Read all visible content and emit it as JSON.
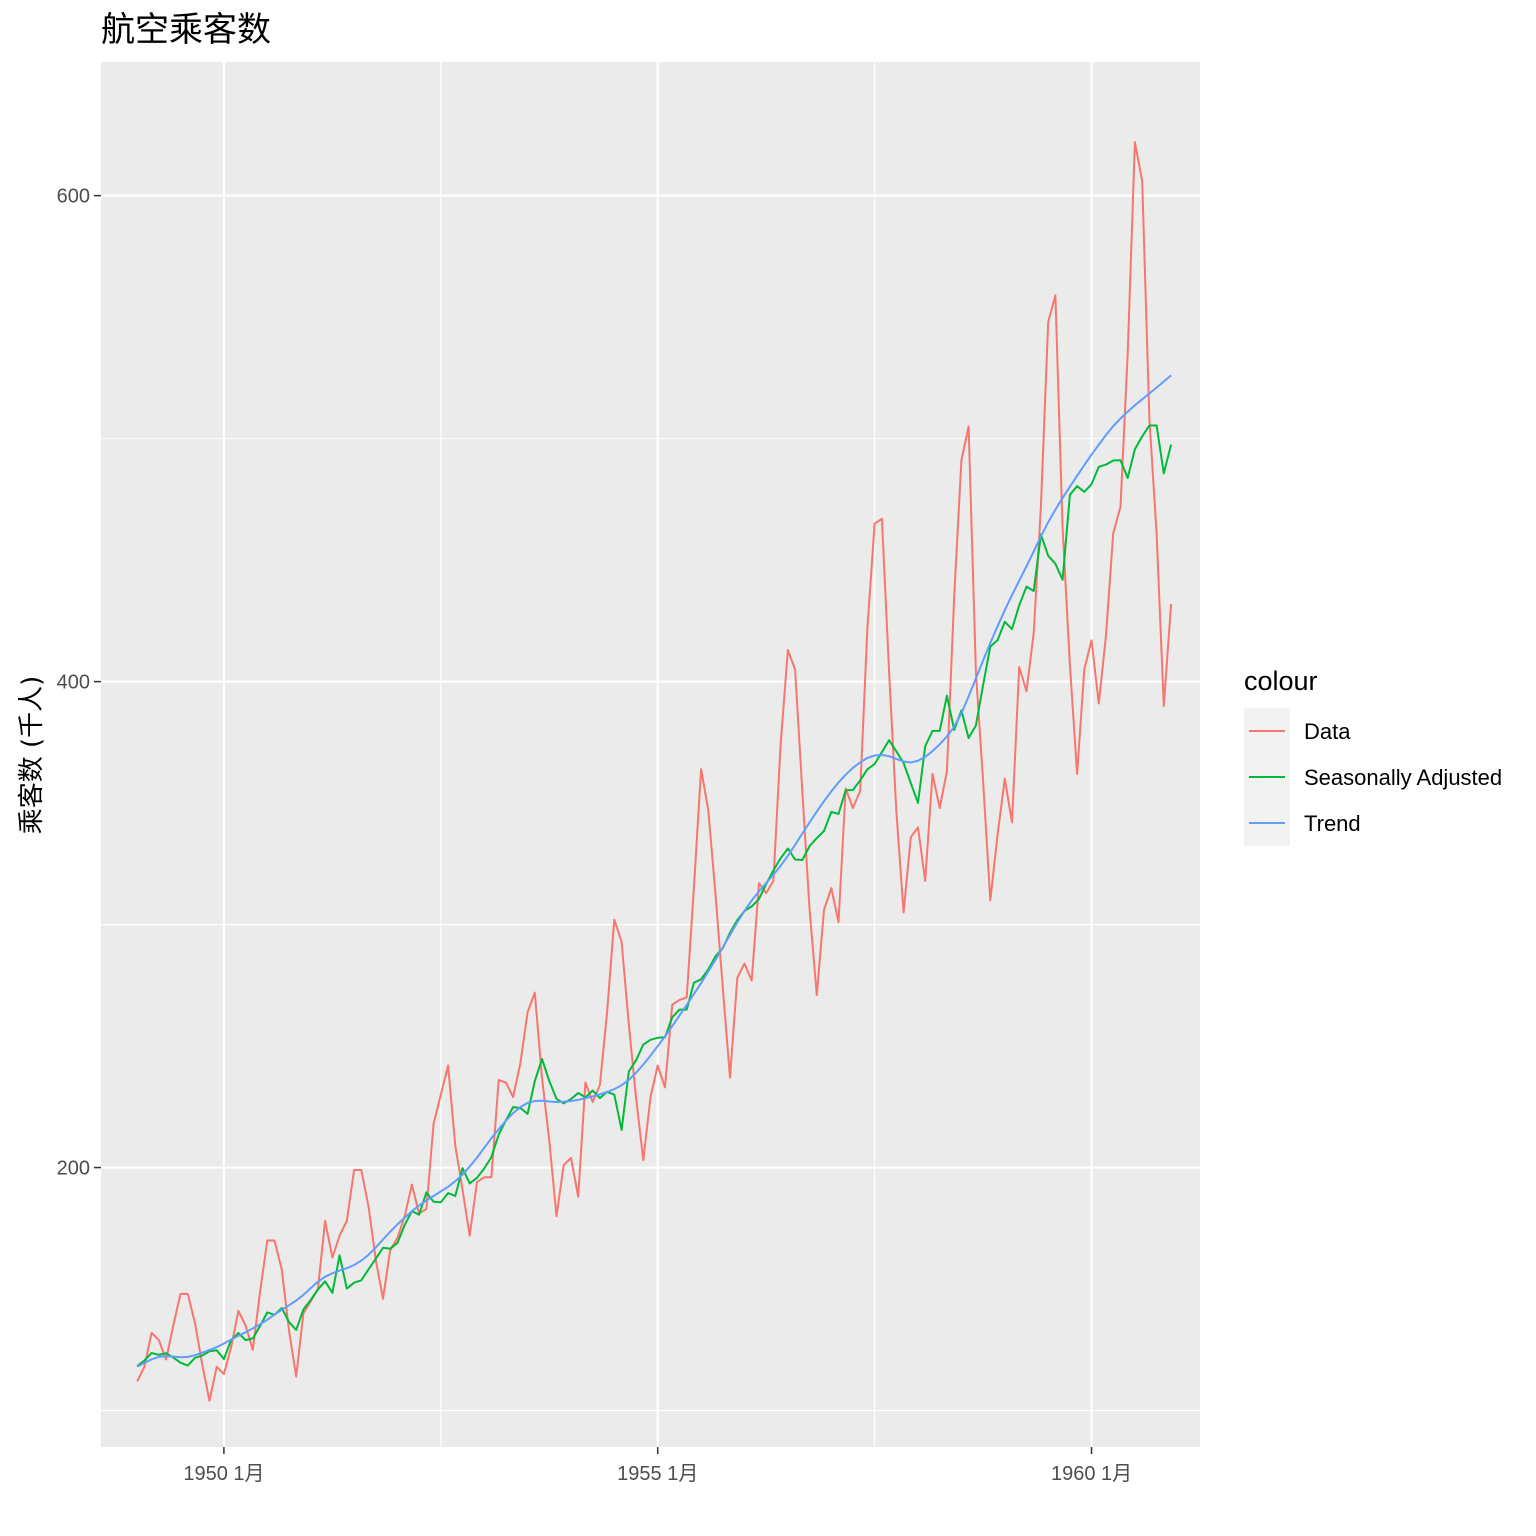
{
  "chart_data": {
    "type": "line",
    "title": "航空乘客数",
    "xlabel": "",
    "ylabel": "乘客数 (千人)",
    "x_start": "1949-01",
    "frequency": "monthly",
    "xlim": [
      "1948-08",
      "1961-04"
    ],
    "ylim": [
      85,
      655
    ],
    "y_ticks": [
      200,
      400,
      600
    ],
    "y_tick_labels": [
      "200",
      "400",
      "600"
    ],
    "x_ticks": [
      "1950-01",
      "1955-01",
      "1960-01"
    ],
    "x_tick_labels": [
      "1950 1月",
      "1955 1月",
      "1960 1月"
    ],
    "grid": true,
    "legend_position": "right",
    "legend_title": "colour",
    "panel_background": "#EBEBEB",
    "series": [
      {
        "name": "Data",
        "color": "#F8766D",
        "values": [
          112,
          118,
          132,
          129,
          121,
          135,
          148,
          148,
          136,
          119,
          104,
          118,
          115,
          126,
          141,
          135,
          125,
          149,
          170,
          170,
          158,
          133,
          114,
          140,
          145,
          150,
          178,
          163,
          172,
          178,
          199,
          199,
          184,
          162,
          146,
          166,
          171,
          180,
          193,
          181,
          183,
          218,
          230,
          242,
          209,
          191,
          172,
          194,
          196,
          196,
          236,
          235,
          229,
          243,
          264,
          272,
          237,
          211,
          180,
          201,
          204,
          188,
          235,
          227,
          234,
          264,
          302,
          293,
          259,
          229,
          203,
          229,
          242,
          233,
          267,
          269,
          270,
          315,
          364,
          347,
          312,
          274,
          237,
          278,
          284,
          277,
          317,
          313,
          318,
          374,
          413,
          405,
          355,
          306,
          271,
          306,
          315,
          301,
          356,
          348,
          355,
          422,
          465,
          467,
          404,
          347,
          305,
          336,
          340,
          318,
          362,
          348,
          363,
          435,
          491,
          505,
          404,
          359,
          310,
          337,
          360,
          342,
          406,
          396,
          420,
          472,
          548,
          559,
          463,
          407,
          362,
          405,
          417,
          391,
          419,
          461,
          472,
          535,
          622,
          606,
          508,
          461,
          390,
          432
        ]
      },
      {
        "name": "Seasonally Adjusted",
        "color": "#00BA38",
        "values": [
          118.3,
          120.6,
          123.7,
          122.9,
          123.6,
          121.8,
          119.7,
          118.5,
          121.7,
          122.6,
          124.4,
          124.8,
          121.2,
          128.9,
          131.9,
          129.0,
          129.7,
          134.8,
          140.4,
          139.4,
          142.2,
          136.4,
          133.2,
          141.6,
          145.5,
          149.8,
          153.2,
          148.4,
          163.9,
          150.2,
          152.6,
          153.6,
          158.1,
          162.5,
          167.0,
          166.6,
          168.9,
          176.4,
          182.1,
          180.6,
          189.8,
          185.9,
          185.7,
          189.5,
          188.3,
          199.8,
          193.5,
          195.8,
          199.6,
          204.3,
          213.6,
          219.4,
          224.9,
          224.5,
          222.1,
          235.6,
          244.7,
          235.6,
          228.3,
          226.4,
          228.2,
          230.7,
          228.9,
          231.7,
          228.6,
          231.2,
          230.0,
          215.5,
          239.5,
          244.1,
          250.6,
          252.6,
          253.4,
          253.6,
          261.8,
          265.0,
          265.0,
          276.1,
          277.5,
          281.6,
          287.0,
          290.3,
          296.6,
          301.9,
          305.6,
          307.5,
          310.5,
          316.7,
          322.3,
          327.3,
          331.3,
          326.8,
          326.6,
          332.3,
          335.6,
          338.5,
          346.4,
          345.5,
          355.3,
          355.4,
          359.4,
          363.9,
          366.1,
          371.0,
          375.9,
          371.3,
          366.5,
          358.2,
          350.1,
          373.4,
          379.7,
          379.7,
          394.2,
          380.1,
          388.1,
          376.8,
          381.9,
          398.6,
          414.4,
          417.1,
          424.6,
          421.6,
          431.4,
          439.1,
          437.3,
          460.5,
          451.8,
          448.5,
          441.9,
          476.9,
          480.4,
          478.1,
          481.2,
          488.4,
          489.3,
          491.0,
          491.1,
          483.8,
          495.7,
          500.9,
          505.4,
          505.4,
          485.7,
          497.6
        ]
      },
      {
        "name": "Trend",
        "color": "#619CFF",
        "values": [
          118.0,
          119.6,
          121.1,
          122.1,
          122.4,
          122.2,
          121.9,
          122.1,
          122.8,
          123.8,
          124.9,
          126.1,
          127.6,
          129.2,
          130.8,
          132.2,
          133.8,
          135.5,
          137.4,
          139.5,
          141.5,
          143.3,
          145.3,
          147.6,
          150.4,
          153.0,
          155.1,
          156.5,
          157.6,
          158.6,
          159.9,
          161.7,
          164.1,
          167.1,
          170.4,
          173.6,
          176.6,
          179.4,
          182.1,
          184.4,
          186.5,
          188.3,
          190.2,
          192.1,
          194.4,
          197.1,
          200.4,
          204.1,
          208.1,
          212.1,
          215.8,
          219.3,
          222.4,
          224.9,
          226.6,
          227.4,
          227.5,
          227.2,
          227.0,
          227.1,
          227.4,
          227.9,
          228.6,
          229.3,
          230.1,
          231.1,
          232.3,
          233.9,
          236.1,
          239.0,
          242.4,
          246.1,
          250.0,
          254.0,
          258.2,
          262.5,
          266.9,
          271.4,
          275.9,
          280.7,
          285.6,
          290.6,
          295.7,
          300.9,
          305.6,
          309.9,
          313.7,
          317.1,
          320.5,
          324.2,
          328.3,
          332.8,
          337.5,
          342.1,
          346.5,
          350.8,
          354.8,
          358.5,
          361.7,
          364.5,
          366.8,
          368.6,
          369.6,
          369.8,
          369.3,
          368.2,
          367.1,
          366.7,
          367.4,
          369.0,
          371.4,
          374.2,
          377.4,
          381.5,
          386.9,
          393.9,
          401.3,
          408.7,
          415.9,
          422.8,
          429.4,
          435.6,
          441.5,
          447.5,
          453.6,
          459.8,
          465.6,
          470.8,
          475.6,
          480.2,
          484.7,
          489.1,
          493.4,
          497.5,
          501.5,
          505.1,
          508.3,
          511.1,
          513.7,
          516.2,
          518.6,
          521.0,
          523.5,
          526.0
        ]
      }
    ]
  }
}
